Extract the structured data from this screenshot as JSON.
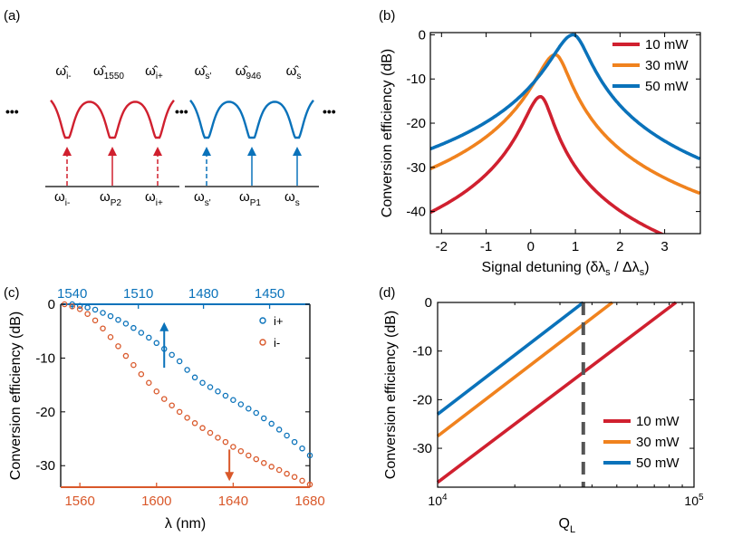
{
  "colors": {
    "red": "#D0202F",
    "orange": "#F0821E",
    "blue": "#0A72BA",
    "rust": "#D9582A",
    "axis": "#000000",
    "dash": "#555555"
  },
  "chart_data": [
    {
      "panel": "(a)",
      "type": "diagram",
      "left_group": {
        "color_name": "red",
        "resonance_labels": [
          "ω̂i-",
          "ω̂1550",
          "ω̂i+"
        ],
        "hat_base": [
          "ω",
          "ω",
          "ω"
        ],
        "hat_sub": [
          "i-",
          "1550",
          "i+"
        ],
        "bottom_base": [
          "ω",
          "ω",
          "ω"
        ],
        "bottom_sub": [
          "i-",
          "P2",
          "i+"
        ],
        "arrow_dashed": [
          true,
          false,
          true
        ]
      },
      "right_group": {
        "color_name": "blue",
        "hat_base": [
          "ω",
          "ω",
          "ω"
        ],
        "hat_sub": [
          "s'",
          "946",
          "s"
        ],
        "bottom_base": [
          "ω",
          "ω",
          "ω"
        ],
        "bottom_sub": [
          "s'",
          "P1",
          "s"
        ],
        "arrow_dashed": [
          true,
          false,
          false
        ]
      },
      "ellipsis": "•••"
    },
    {
      "panel": "(b)",
      "type": "line",
      "xlabel_main": "Signal detuning (δλ",
      "xlabel_sub1": "s",
      "xlabel_mid": " / Δλ",
      "xlabel_sub2": "s",
      "xlabel_end": ")",
      "ylabel": "Conversion efficiency (dB)",
      "xlim": [
        -2.25,
        3.8
      ],
      "ylim": [
        -45,
        0.5
      ],
      "xticks": [
        -2,
        -1,
        0,
        1,
        2,
        3
      ],
      "yticks": [
        0,
        -10,
        -20,
        -30,
        -40
      ],
      "legend": [
        "10 mW",
        "30 mW",
        "50 mW"
      ],
      "series": [
        {
          "name": "10 mW",
          "peak_x": 0.22,
          "peak_y": -14,
          "width": 0.6
        },
        {
          "name": "30 mW",
          "peak_x": 0.55,
          "peak_y": -4.5,
          "width": 0.7
        },
        {
          "name": "50 mW",
          "peak_x": 0.95,
          "peak_y": 0,
          "width": 0.8
        }
      ]
    },
    {
      "panel": "(c)",
      "type": "scatter",
      "xlabel": "λ (nm)",
      "ylabel": "Conversion efficiency (dB)",
      "xlim": [
        1550,
        1680
      ],
      "ylim": [
        -34,
        0
      ],
      "xticks": [
        1560,
        1600,
        1640,
        1680
      ],
      "yticks": [
        0,
        -10,
        -20,
        -30
      ],
      "top_xticks": [
        1540,
        1510,
        1480,
        1450
      ],
      "top_xticks_pos": [
        1556,
        1590.5,
        1624.5,
        1659
      ],
      "legend": [
        "i+",
        "i-"
      ],
      "series": [
        {
          "name": "i+",
          "x": [
            1556,
            1560,
            1564,
            1568,
            1572,
            1576,
            1580,
            1584,
            1588,
            1592,
            1596,
            1600,
            1604,
            1608,
            1612,
            1616,
            1620,
            1624,
            1628,
            1632,
            1636,
            1640,
            1644,
            1648,
            1652,
            1656,
            1660,
            1664,
            1668,
            1672,
            1676,
            1680
          ],
          "y": [
            0,
            -0.3,
            -0.6,
            -1,
            -1.6,
            -2.2,
            -2.9,
            -3.6,
            -4.4,
            -5.3,
            -6.2,
            -7.2,
            -8.3,
            -9.4,
            -10.6,
            -12.2,
            -13.6,
            -14.6,
            -15.4,
            -16.2,
            -17.0,
            -17.8,
            -18.6,
            -19.4,
            -20.2,
            -21.2,
            -22.2,
            -23.3,
            -24.4,
            -25.6,
            -26.8,
            -28.1
          ]
        },
        {
          "name": "i-",
          "x": [
            1552,
            1556,
            1560,
            1564,
            1568,
            1572,
            1576,
            1580,
            1584,
            1588,
            1592,
            1596,
            1600,
            1604,
            1608,
            1612,
            1616,
            1620,
            1624,
            1628,
            1632,
            1636,
            1640,
            1644,
            1648,
            1652,
            1656,
            1660,
            1664,
            1668,
            1672,
            1676,
            1680
          ],
          "y": [
            0,
            -0.4,
            -0.9,
            -1.8,
            -3,
            -4.5,
            -6.1,
            -7.8,
            -9.6,
            -11.3,
            -13,
            -14.6,
            -16.2,
            -17.6,
            -18.8,
            -20,
            -21.1,
            -22.1,
            -23,
            -23.9,
            -24.8,
            -25.6,
            -26.5,
            -27.3,
            -28.1,
            -28.8,
            -29.5,
            -30.2,
            -30.8,
            -31.5,
            -32.1,
            -32.8,
            -33.5
          ]
        }
      ],
      "arrows": [
        {
          "series": "i+",
          "x": 1604,
          "direction": "up"
        },
        {
          "series": "i-",
          "x": 1638,
          "direction": "down"
        }
      ]
    },
    {
      "panel": "(d)",
      "type": "line",
      "xlabel_base": "Q",
      "xlabel_sub": "L",
      "ylabel": "Conversion efficiency (dB)",
      "xscale": "log",
      "xlim": [
        10000,
        100000
      ],
      "ylim": [
        -38,
        0
      ],
      "xtick_base": [
        "10",
        "10"
      ],
      "xtick_exp": [
        "4",
        "5"
      ],
      "yticks": [
        0,
        -10,
        -20,
        -30
      ],
      "legend": [
        "10 mW",
        "30 mW",
        "50 mW"
      ],
      "series": [
        {
          "name": "10 mW",
          "x": [
            10000,
            85000
          ],
          "y": [
            -37,
            0
          ]
        },
        {
          "name": "30 mW",
          "x": [
            10000,
            48000
          ],
          "y": [
            -27.5,
            0
          ]
        },
        {
          "name": "50 mW",
          "x": [
            10000,
            37000
          ],
          "y": [
            -23,
            0
          ]
        }
      ],
      "vline_x": 37000
    }
  ]
}
